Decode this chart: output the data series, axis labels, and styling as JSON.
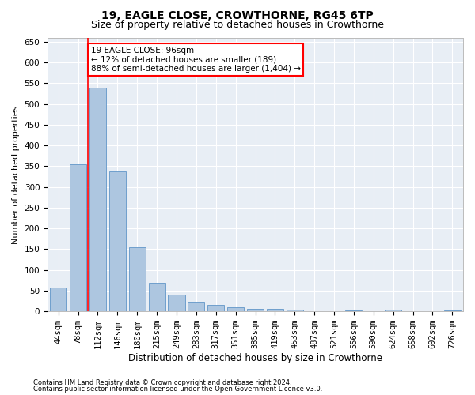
{
  "title1": "19, EAGLE CLOSE, CROWTHORNE, RG45 6TP",
  "title2": "Size of property relative to detached houses in Crowthorne",
  "xlabel": "Distribution of detached houses by size in Crowthorne",
  "ylabel": "Number of detached properties",
  "categories": [
    "44sqm",
    "78sqm",
    "112sqm",
    "146sqm",
    "180sqm",
    "215sqm",
    "249sqm",
    "283sqm",
    "317sqm",
    "351sqm",
    "385sqm",
    "419sqm",
    "453sqm",
    "487sqm",
    "521sqm",
    "556sqm",
    "590sqm",
    "624sqm",
    "658sqm",
    "692sqm",
    "726sqm"
  ],
  "values": [
    57,
    355,
    540,
    338,
    155,
    68,
    40,
    24,
    16,
    10,
    7,
    7,
    5,
    0,
    0,
    3,
    0,
    5,
    0,
    0,
    3
  ],
  "bar_color": "#adc6e0",
  "bar_edgecolor": "#6096c8",
  "vline_color": "red",
  "annotation_text": "19 EAGLE CLOSE: 96sqm\n← 12% of detached houses are smaller (189)\n88% of semi-detached houses are larger (1,404) →",
  "annotation_box_color": "white",
  "annotation_box_edgecolor": "red",
  "ylim": [
    0,
    660
  ],
  "yticks": [
    0,
    50,
    100,
    150,
    200,
    250,
    300,
    350,
    400,
    450,
    500,
    550,
    600,
    650
  ],
  "footer1": "Contains HM Land Registry data © Crown copyright and database right 2024.",
  "footer2": "Contains public sector information licensed under the Open Government Licence v3.0.",
  "bg_color": "#ffffff",
  "plot_bg_color": "#e8eef5",
  "grid_color": "#ffffff",
  "title1_fontsize": 10,
  "title2_fontsize": 9,
  "xlabel_fontsize": 8.5,
  "ylabel_fontsize": 8,
  "footer_fontsize": 6,
  "tick_fontsize": 7.5,
  "annot_fontsize": 7.5
}
